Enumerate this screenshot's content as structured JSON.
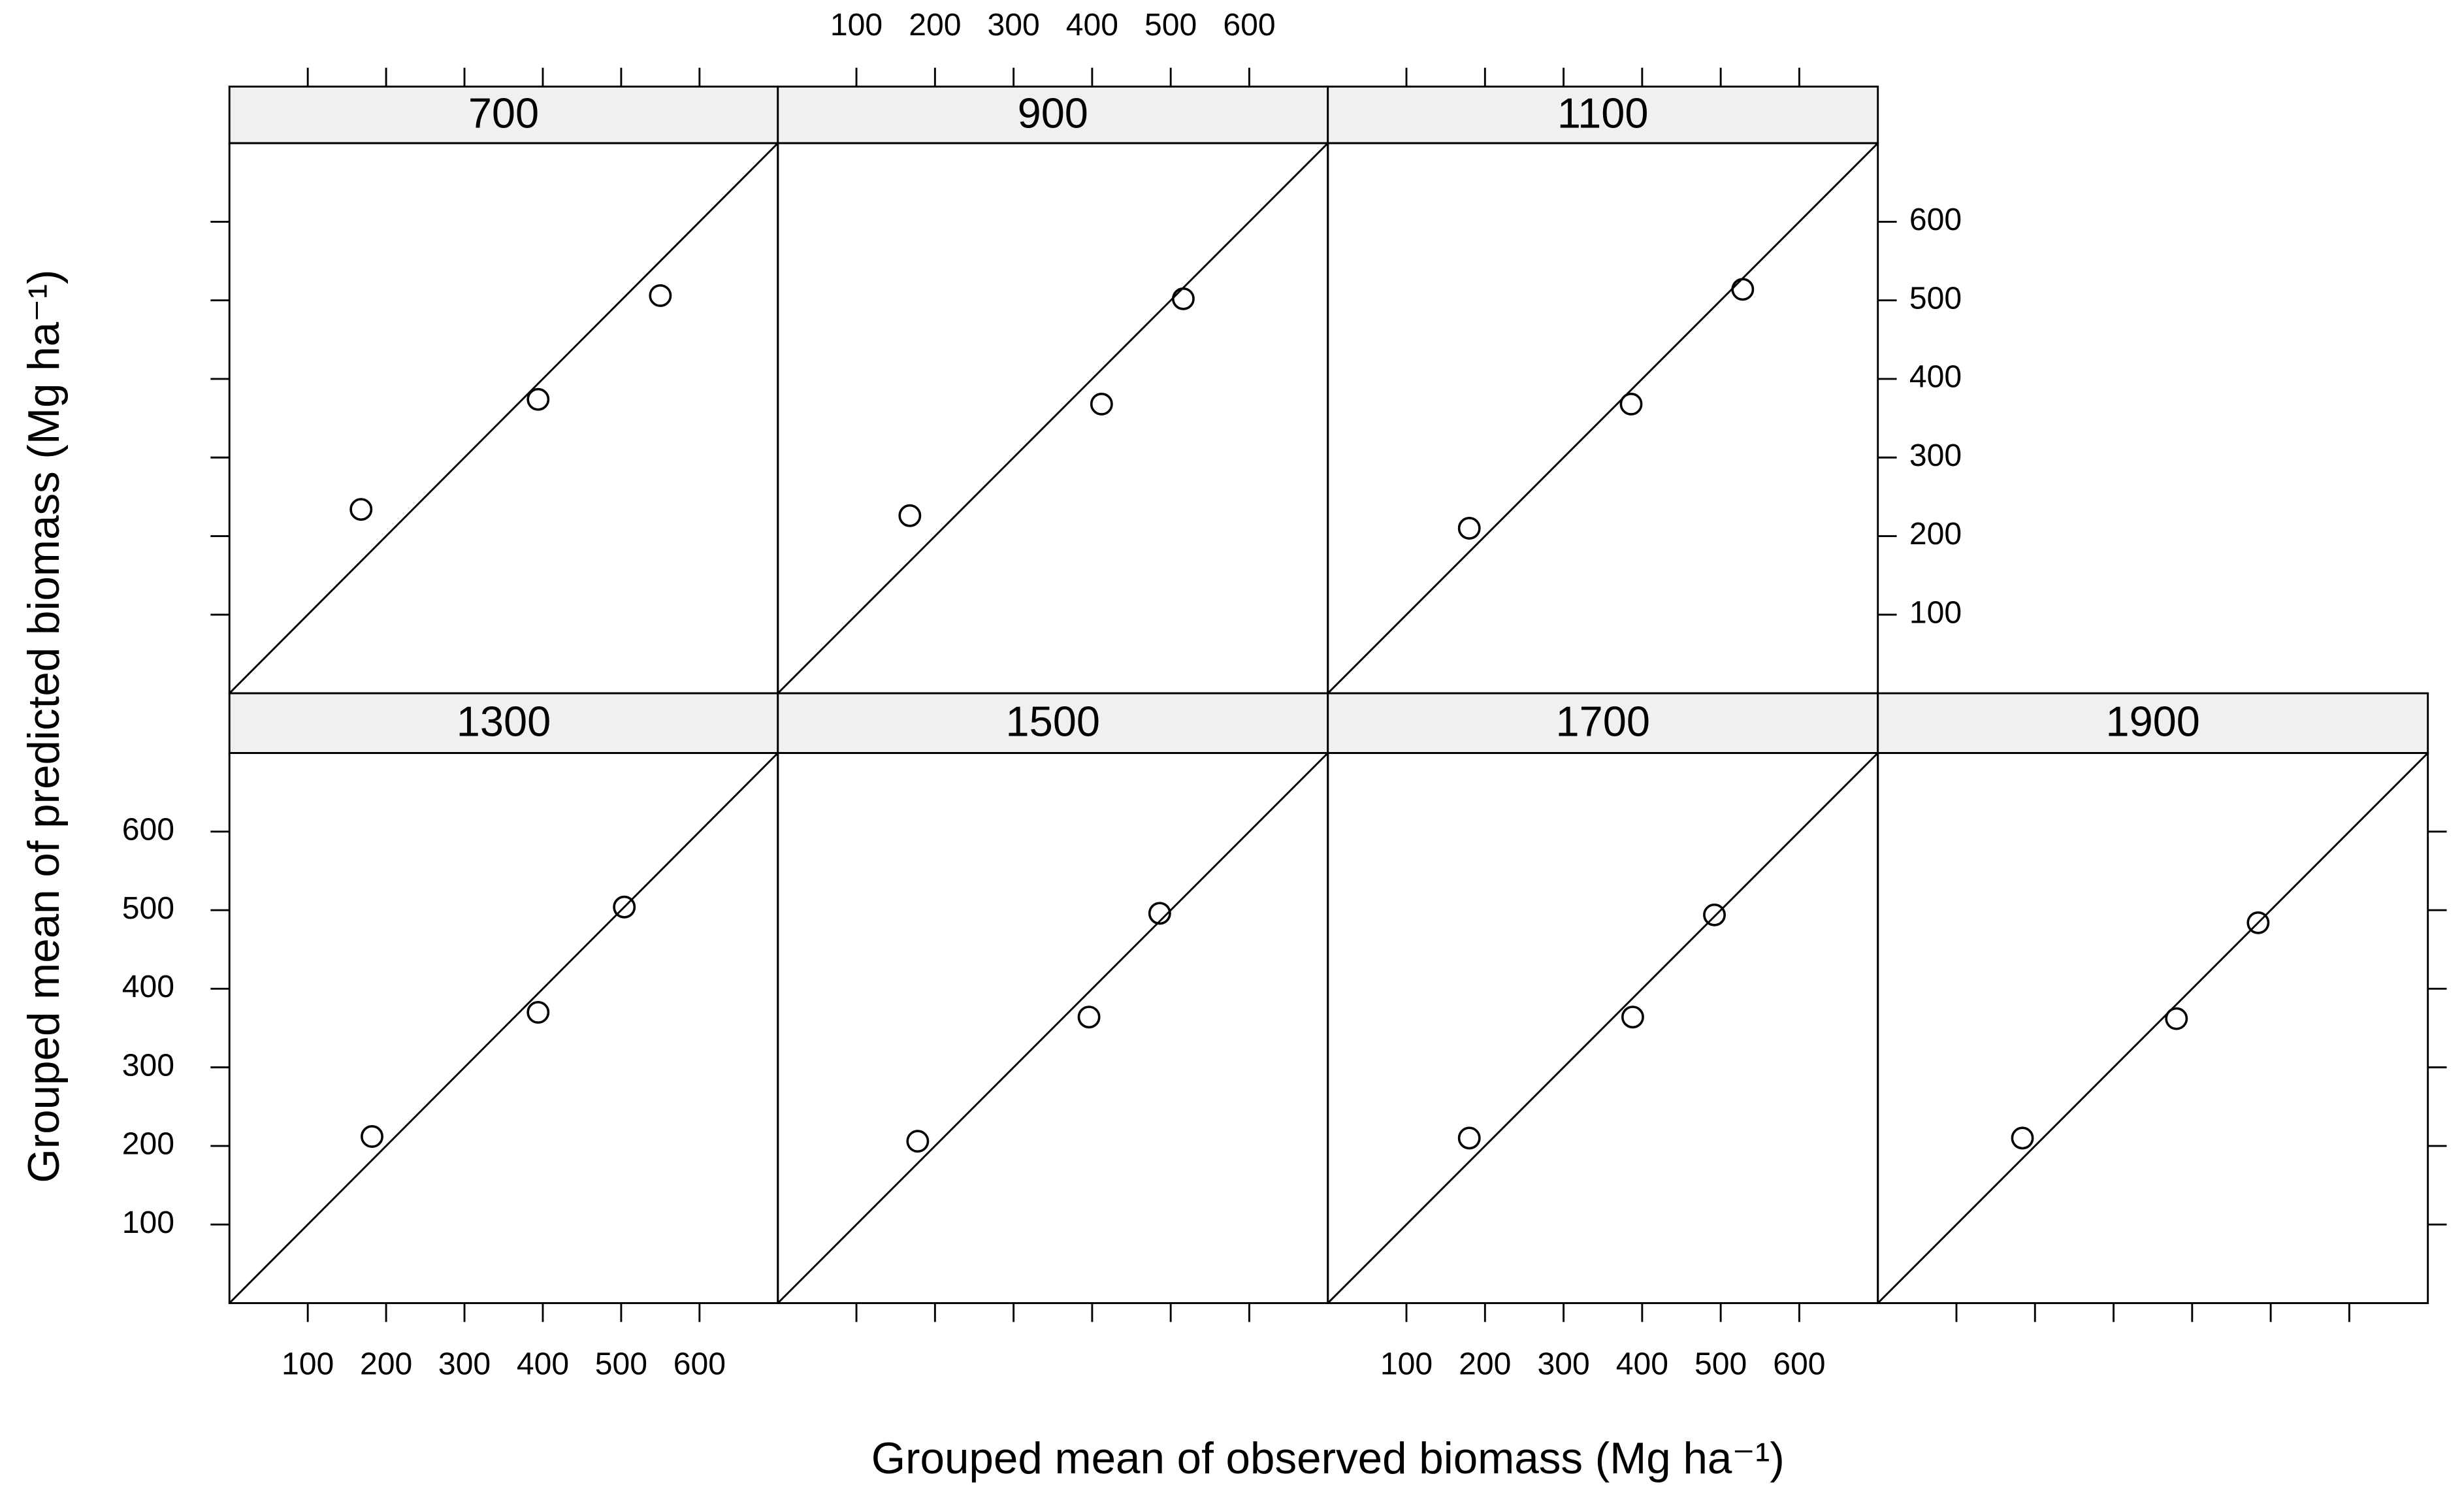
{
  "x_label": "Grouped mean of observed biomass (Mg ha⁻¹)",
  "y_label": "Grouped mean of predicted biomass (Mg ha⁻¹)",
  "chart_data": [
    {
      "type": "scatter",
      "title": "700",
      "x": [
        168,
        394,
        550
      ],
      "values": [
        234,
        374,
        506
      ],
      "xlim": [
        0,
        700
      ],
      "ylim": [
        0,
        700
      ],
      "xticks": [
        100,
        200,
        300,
        400,
        500,
        600
      ],
      "yticks": [
        100,
        200,
        300,
        400,
        500,
        600
      ],
      "x_tick_labels": "none",
      "y_tick_labels": "none",
      "identity_line": true
    },
    {
      "type": "scatter",
      "title": "900",
      "x": [
        168,
        412,
        516
      ],
      "values": [
        226,
        368,
        502
      ],
      "xlim": [
        0,
        700
      ],
      "ylim": [
        0,
        700
      ],
      "xticks": [
        100,
        200,
        300,
        400,
        500,
        600
      ],
      "yticks": [
        100,
        200,
        300,
        400,
        500,
        600
      ],
      "x_tick_labels": "top",
      "y_tick_labels": "none",
      "identity_line": true
    },
    {
      "type": "scatter",
      "title": "1100",
      "x": [
        180,
        386,
        528
      ],
      "values": [
        210,
        368,
        514
      ],
      "xlim": [
        0,
        700
      ],
      "ylim": [
        0,
        700
      ],
      "xticks": [
        100,
        200,
        300,
        400,
        500,
        600
      ],
      "yticks": [
        100,
        200,
        300,
        400,
        500,
        600
      ],
      "x_tick_labels": "none",
      "y_tick_labels": "right",
      "identity_line": true
    },
    {
      "type": "scatter",
      "title": "1300",
      "x": [
        182,
        394,
        504
      ],
      "values": [
        212,
        370,
        504
      ],
      "xlim": [
        0,
        700
      ],
      "ylim": [
        0,
        700
      ],
      "xticks": [
        100,
        200,
        300,
        400,
        500,
        600
      ],
      "yticks": [
        100,
        200,
        300,
        400,
        500,
        600
      ],
      "x_tick_labels": "bottom",
      "y_tick_labels": "left",
      "identity_line": true
    },
    {
      "type": "scatter",
      "title": "1500",
      "x": [
        178,
        396,
        486
      ],
      "values": [
        206,
        364,
        496
      ],
      "xlim": [
        0,
        700
      ],
      "ylim": [
        0,
        700
      ],
      "xticks": [
        100,
        200,
        300,
        400,
        500,
        600
      ],
      "yticks": [
        100,
        200,
        300,
        400,
        500,
        600
      ],
      "x_tick_labels": "none",
      "y_tick_labels": "none",
      "identity_line": true
    },
    {
      "type": "scatter",
      "title": "1700",
      "x": [
        180,
        388,
        492
      ],
      "values": [
        210,
        364,
        494
      ],
      "xlim": [
        0,
        700
      ],
      "ylim": [
        0,
        700
      ],
      "xticks": [
        100,
        200,
        300,
        400,
        500,
        600
      ],
      "yticks": [
        100,
        200,
        300,
        400,
        500,
        600
      ],
      "x_tick_labels": "bottom",
      "y_tick_labels": "none",
      "identity_line": true
    },
    {
      "type": "scatter",
      "title": "1900",
      "x": [
        184,
        380,
        484
      ],
      "values": [
        210,
        362,
        484
      ],
      "xlim": [
        0,
        700
      ],
      "ylim": [
        0,
        700
      ],
      "xticks": [
        100,
        200,
        300,
        400,
        500,
        600
      ],
      "yticks": [
        100,
        200,
        300,
        400,
        500,
        600
      ],
      "x_tick_labels": "none",
      "y_tick_labels": "none",
      "identity_line": true
    }
  ]
}
